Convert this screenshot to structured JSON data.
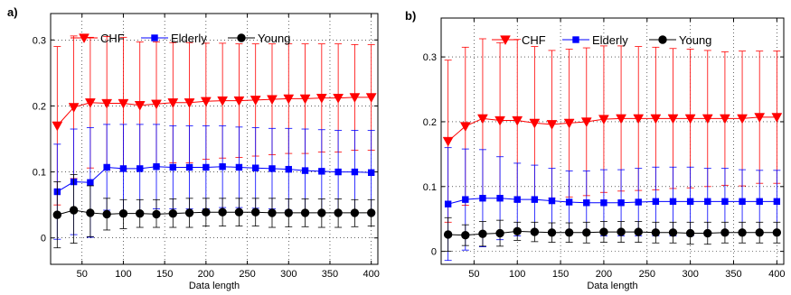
{
  "chart_data": [
    {
      "type": "line",
      "panel_label": "a)",
      "xlabel": "Data length",
      "ylabel": "",
      "xlim": [
        12,
        408
      ],
      "ylim": [
        -0.04,
        0.34
      ],
      "xticks": [
        50,
        100,
        150,
        200,
        250,
        300,
        350,
        400
      ],
      "yticks": [
        0,
        0.1,
        0.2,
        0.3
      ],
      "ytick_labels": [
        "0",
        "0.1",
        "0.2",
        "0.3"
      ],
      "grid": true,
      "legend_position": "top",
      "x": [
        20,
        40,
        60,
        80,
        100,
        120,
        140,
        160,
        180,
        200,
        220,
        240,
        260,
        280,
        300,
        320,
        340,
        360,
        380,
        400
      ],
      "series": [
        {
          "name": "CHF",
          "color": "#ff0000",
          "marker": "triangle-down",
          "values": [
            0.17,
            0.198,
            0.205,
            0.204,
            0.204,
            0.201,
            0.203,
            0.205,
            0.205,
            0.207,
            0.208,
            0.208,
            0.209,
            0.21,
            0.211,
            0.211,
            0.212,
            0.212,
            0.213,
            0.213
          ],
          "upper": [
            0.29,
            0.306,
            0.304,
            0.305,
            0.304,
            0.297,
            0.297,
            0.296,
            0.296,
            0.295,
            0.295,
            0.294,
            0.294,
            0.294,
            0.294,
            0.294,
            0.294,
            0.294,
            0.293,
            0.293
          ],
          "lower": [
            0.05,
            0.09,
            0.106,
            0.103,
            0.104,
            0.105,
            0.109,
            0.114,
            0.114,
            0.119,
            0.121,
            0.122,
            0.124,
            0.126,
            0.128,
            0.128,
            0.13,
            0.13,
            0.133,
            0.133
          ]
        },
        {
          "name": "Elderly",
          "color": "#0000ff",
          "marker": "square",
          "values": [
            0.07,
            0.085,
            0.084,
            0.107,
            0.105,
            0.105,
            0.108,
            0.107,
            0.107,
            0.107,
            0.108,
            0.107,
            0.106,
            0.105,
            0.104,
            0.102,
            0.101,
            0.1,
            0.1,
            0.099
          ],
          "upper": [
            0.142,
            0.165,
            0.167,
            0.172,
            0.172,
            0.172,
            0.172,
            0.17,
            0.17,
            0.17,
            0.17,
            0.168,
            0.167,
            0.166,
            0.166,
            0.165,
            0.164,
            0.163,
            0.163,
            0.163
          ],
          "lower": [
            -0.002,
            0.005,
            0.001,
            0.042,
            0.038,
            0.038,
            0.044,
            0.044,
            0.044,
            0.044,
            0.046,
            0.046,
            0.045,
            0.044,
            0.042,
            0.039,
            0.038,
            0.037,
            0.037,
            0.035
          ]
        },
        {
          "name": "Young",
          "color": "#000000",
          "marker": "circle",
          "values": [
            0.035,
            0.042,
            0.038,
            0.036,
            0.037,
            0.037,
            0.036,
            0.037,
            0.038,
            0.039,
            0.039,
            0.039,
            0.039,
            0.038,
            0.038,
            0.038,
            0.038,
            0.038,
            0.038,
            0.038
          ],
          "upper": [
            0.085,
            0.096,
            0.079,
            0.06,
            0.058,
            0.058,
            0.058,
            0.059,
            0.06,
            0.06,
            0.06,
            0.06,
            0.06,
            0.06,
            0.059,
            0.059,
            0.059,
            0.059,
            0.058,
            0.058
          ],
          "lower": [
            -0.015,
            -0.008,
            0.002,
            0.012,
            0.014,
            0.016,
            0.016,
            0.016,
            0.016,
            0.018,
            0.018,
            0.018,
            0.018,
            0.016,
            0.017,
            0.017,
            0.016,
            0.016,
            0.017,
            0.018
          ]
        }
      ]
    },
    {
      "type": "line",
      "panel_label": "b)",
      "xlabel": "Data length",
      "ylabel": "",
      "xlim": [
        12,
        408
      ],
      "ylim": [
        -0.02,
        0.36
      ],
      "xticks": [
        50,
        100,
        150,
        200,
        250,
        300,
        350,
        400
      ],
      "yticks": [
        0,
        0.1,
        0.2,
        0.3
      ],
      "ytick_labels": [
        "0",
        "0.1",
        "0.2",
        "0.3"
      ],
      "grid": true,
      "legend_position": "top",
      "x": [
        20,
        40,
        60,
        80,
        100,
        120,
        140,
        160,
        180,
        200,
        220,
        240,
        260,
        280,
        300,
        320,
        340,
        360,
        380,
        400
      ],
      "series": [
        {
          "name": "CHF",
          "color": "#ff0000",
          "marker": "triangle-down",
          "values": [
            0.17,
            0.193,
            0.205,
            0.202,
            0.202,
            0.198,
            0.196,
            0.198,
            0.2,
            0.204,
            0.205,
            0.205,
            0.205,
            0.205,
            0.205,
            0.205,
            0.205,
            0.205,
            0.207,
            0.207
          ],
          "upper": [
            0.295,
            0.315,
            0.328,
            0.322,
            0.327,
            0.316,
            0.31,
            0.312,
            0.314,
            0.317,
            0.317,
            0.316,
            0.315,
            0.313,
            0.312,
            0.31,
            0.308,
            0.309,
            0.309,
            0.309
          ],
          "lower": [
            0.045,
            0.071,
            0.082,
            0.082,
            0.077,
            0.08,
            0.082,
            0.084,
            0.086,
            0.091,
            0.093,
            0.094,
            0.095,
            0.097,
            0.098,
            0.1,
            0.102,
            0.101,
            0.105,
            0.105
          ]
        },
        {
          "name": "Elderly",
          "color": "#0000ff",
          "marker": "square",
          "values": [
            0.073,
            0.08,
            0.082,
            0.082,
            0.08,
            0.08,
            0.078,
            0.076,
            0.075,
            0.075,
            0.075,
            0.076,
            0.077,
            0.077,
            0.077,
            0.077,
            0.077,
            0.077,
            0.077,
            0.077
          ],
          "upper": [
            0.16,
            0.158,
            0.157,
            0.146,
            0.136,
            0.133,
            0.128,
            0.124,
            0.124,
            0.126,
            0.126,
            0.128,
            0.13,
            0.13,
            0.13,
            0.128,
            0.128,
            0.126,
            0.125,
            0.125
          ],
          "lower": [
            -0.014,
            0.002,
            0.007,
            0.018,
            0.024,
            0.027,
            0.028,
            0.028,
            0.026,
            0.024,
            0.024,
            0.024,
            0.024,
            0.024,
            0.024,
            0.026,
            0.026,
            0.028,
            0.029,
            0.029
          ]
        },
        {
          "name": "Young",
          "color": "#000000",
          "marker": "circle",
          "values": [
            0.026,
            0.025,
            0.027,
            0.028,
            0.031,
            0.03,
            0.029,
            0.029,
            0.029,
            0.03,
            0.03,
            0.03,
            0.029,
            0.029,
            0.028,
            0.028,
            0.029,
            0.029,
            0.029,
            0.029
          ],
          "upper": [
            0.052,
            0.041,
            0.046,
            0.048,
            0.045,
            0.045,
            0.044,
            0.044,
            0.045,
            0.046,
            0.046,
            0.046,
            0.045,
            0.045,
            0.045,
            0.045,
            0.045,
            0.045,
            0.045,
            0.045
          ],
          "lower": [
            0.0,
            0.009,
            0.008,
            0.008,
            0.017,
            0.015,
            0.014,
            0.014,
            0.013,
            0.014,
            0.014,
            0.014,
            0.013,
            0.013,
            0.011,
            0.011,
            0.013,
            0.013,
            0.013,
            0.013
          ]
        }
      ]
    }
  ]
}
